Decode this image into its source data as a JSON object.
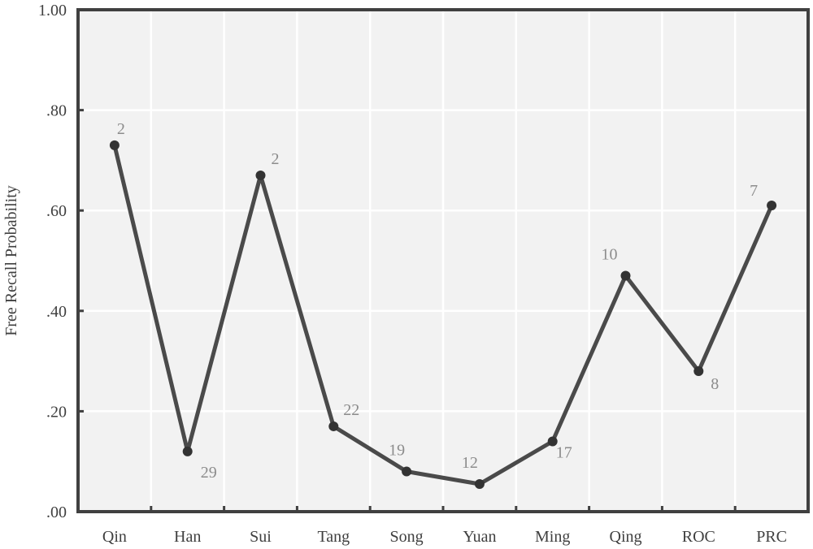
{
  "chart_data": {
    "type": "line",
    "title": "",
    "xlabel": "",
    "ylabel": "Free Recall Probability",
    "categories": [
      "Qin",
      "Han",
      "Sui",
      "Tang",
      "Song",
      "Yuan",
      "Ming",
      "Qing",
      "ROC",
      "PRC"
    ],
    "series": [
      {
        "values": [
          0.73,
          0.12,
          0.67,
          0.17,
          0.08,
          0.055,
          0.14,
          0.47,
          0.28,
          0.61
        ],
        "point_labels": [
          "2",
          "29",
          "2",
          "22",
          "19",
          "12",
          "17",
          "10",
          "8",
          "7"
        ]
      }
    ],
    "ylim": [
      0,
      1.0
    ],
    "yticks": [
      0,
      0.2,
      0.4,
      0.6,
      0.8,
      1.0
    ],
    "ytick_labels": [
      ".00",
      ".20",
      ".40",
      ".60",
      ".80",
      "1.00"
    ],
    "grid": true,
    "colors": {
      "plot_background": "#f2f2f2",
      "grid": "#ffffff",
      "axis": "#404040",
      "line": "#4a4a4a",
      "marker": "#333333",
      "point_label": "#8c8c8c"
    }
  }
}
